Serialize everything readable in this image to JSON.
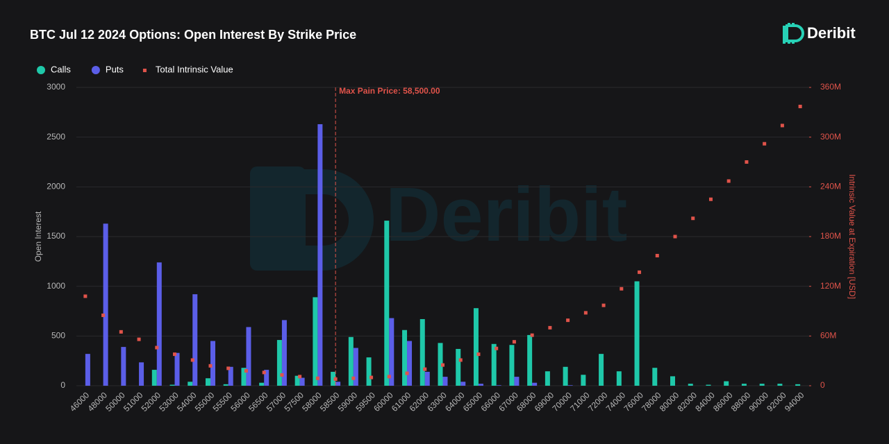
{
  "chart_data": {
    "type": "bar",
    "title": "BTC Jul 12 2024 Options: Open Interest By Strike Price",
    "logo": "Deribit",
    "y_label": "Open Interest",
    "y2_label": "Intrinsic Value at Expiration [USD]",
    "annotations": [
      {
        "text": "Max Pain Price: 58,500.00",
        "x": "58500"
      }
    ],
    "categories": [
      "46000",
      "48000",
      "50000",
      "51000",
      "52000",
      "53000",
      "54000",
      "55000",
      "55500",
      "56000",
      "56500",
      "57000",
      "57500",
      "58000",
      "58500",
      "59000",
      "59500",
      "60000",
      "61000",
      "62000",
      "63000",
      "64000",
      "65000",
      "66000",
      "67000",
      "68000",
      "69000",
      "70000",
      "71000",
      "72000",
      "74000",
      "76000",
      "78000",
      "80000",
      "82000",
      "84000",
      "86000",
      "88000",
      "90000",
      "92000",
      "94000"
    ],
    "series": [
      {
        "name": "Calls",
        "type": "bar",
        "color": "#1fc8a9",
        "values": [
          0,
          0,
          0,
          0,
          160,
          10,
          40,
          75,
          15,
          180,
          30,
          460,
          100,
          890,
          140,
          490,
          285,
          1660,
          560,
          670,
          430,
          370,
          780,
          420,
          410,
          510,
          145,
          190,
          110,
          320,
          145,
          1050,
          180,
          95,
          20,
          10,
          45,
          20,
          20,
          20,
          15
        ]
      },
      {
        "name": "Puts",
        "type": "bar",
        "color": "#5b5ee8",
        "values": [
          320,
          1630,
          390,
          235,
          1240,
          330,
          920,
          450,
          190,
          590,
          160,
          660,
          80,
          2630,
          40,
          380,
          0,
          680,
          450,
          140,
          90,
          40,
          20,
          5,
          90,
          30,
          0,
          5,
          0,
          0,
          0,
          0,
          0,
          0,
          0,
          0,
          0,
          0,
          0,
          0,
          0
        ]
      },
      {
        "name": "Total Intrinsic Value",
        "type": "scatter",
        "axis": "y2",
        "color": "#e0534a",
        "values": [
          108000000,
          85000000,
          65000000,
          56000000,
          46000000,
          38000000,
          31000000,
          24000000,
          21000000,
          18000000,
          16000000,
          13000000,
          11000000,
          9000000,
          8000000,
          9000000,
          10000000,
          11000000,
          15000000,
          20000000,
          25000000,
          31000000,
          38000000,
          45000000,
          53000000,
          61000000,
          70000000,
          79000000,
          88000000,
          97000000,
          117000000,
          137000000,
          157000000,
          180000000,
          202000000,
          225000000,
          247000000,
          270000000,
          292000000,
          314000000,
          337000000
        ]
      }
    ],
    "ylim": [
      0,
      3000
    ],
    "yticks": [
      0,
      500,
      1000,
      1500,
      2000,
      2500,
      3000
    ],
    "y2lim": [
      0,
      360000000
    ],
    "y2ticks": [
      {
        "value": 0,
        "label": "0"
      },
      {
        "value": 60000000,
        "label": "60M"
      },
      {
        "value": 120000000,
        "label": "120M"
      },
      {
        "value": 180000000,
        "label": "180M"
      },
      {
        "value": 240000000,
        "label": "240M"
      },
      {
        "value": 300000000,
        "label": "300M"
      },
      {
        "value": 360000000,
        "label": "360M"
      }
    ],
    "grid": true
  }
}
